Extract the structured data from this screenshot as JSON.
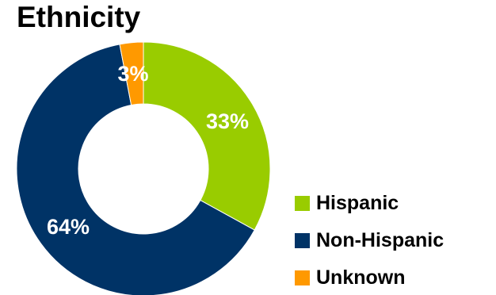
{
  "chart_data": {
    "type": "pie",
    "donut": true,
    "title": "Ethnicity",
    "categories": [
      "Hispanic",
      "Non-Hispanic",
      "Unknown"
    ],
    "values": [
      33,
      64,
      3
    ],
    "labels": [
      "33%",
      "64%",
      "3%"
    ],
    "colors": [
      "#99CC00",
      "#003366",
      "#FF9900"
    ],
    "legend_position": "bottom-right"
  }
}
